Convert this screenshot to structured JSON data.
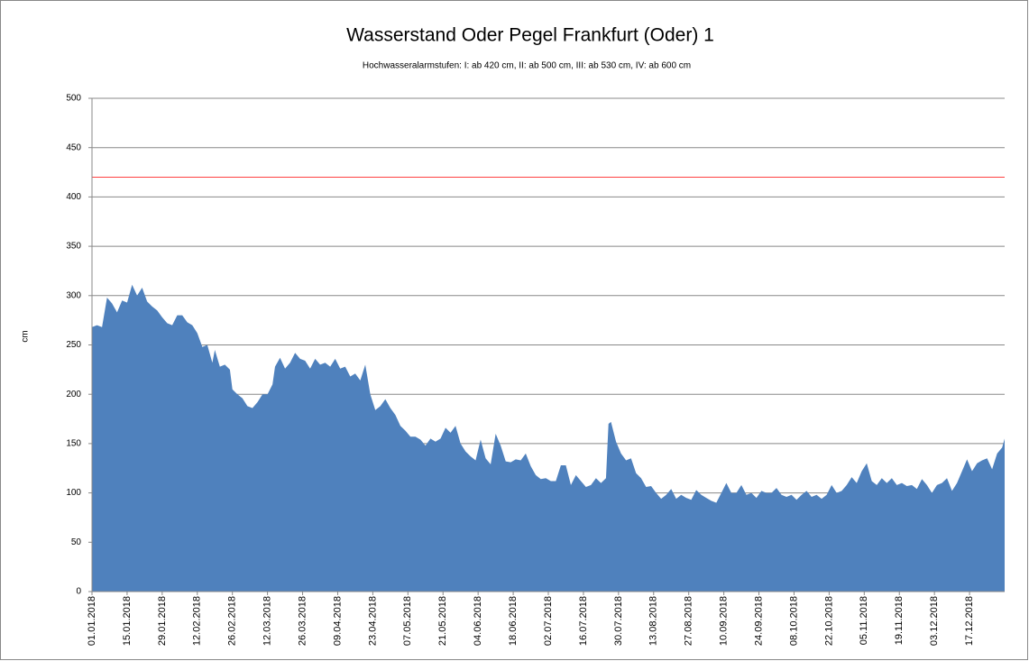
{
  "chart_data": {
    "type": "area",
    "title": "Wasserstand Oder Pegel Frankfurt (Oder) 1",
    "subtitle": "Hochwasseralarmstufen: I: ab 420 cm, II: ab 500 cm, III: ab 530 cm,  IV: ab 600 cm",
    "y_label": "cm",
    "xlim": [
      "01.01.2018",
      "31.12.2018"
    ],
    "ylim": [
      0,
      500
    ],
    "yticks": [
      0,
      50,
      100,
      150,
      200,
      250,
      300,
      350,
      400,
      450,
      500
    ],
    "xticks": [
      "01.01.2018",
      "15.01.2018",
      "29.01.2018",
      "12.02.2018",
      "26.02.2018",
      "12.03.2018",
      "26.03.2018",
      "09.04.2018",
      "23.04.2018",
      "07.05.2018",
      "21.05.2018",
      "04.06.2018",
      "18.06.2018",
      "02.07.2018",
      "16.07.2018",
      "30.07.2018",
      "13.08.2018",
      "27.08.2018",
      "10.09.2018",
      "24.09.2018",
      "08.10.2018",
      "22.10.2018",
      "05.11.2018",
      "19.11.2018",
      "03.12.2018",
      "17.12.2018"
    ],
    "grid": true,
    "alarm_line": {
      "value": 420,
      "color": "#ff0000"
    },
    "x": [
      "01.01.2018",
      "03.01.2018",
      "05.01.2018",
      "07.01.2018",
      "09.01.2018",
      "11.01.2018",
      "13.01.2018",
      "15.01.2018",
      "17.01.2018",
      "19.01.2018",
      "21.01.2018",
      "23.01.2018",
      "25.01.2018",
      "27.01.2018",
      "29.01.2018",
      "31.01.2018",
      "02.02.2018",
      "04.02.2018",
      "06.02.2018",
      "08.02.2018",
      "10.02.2018",
      "12.02.2018",
      "14.02.2018",
      "16.02.2018",
      "18.02.2018",
      "19.02.2018",
      "21.02.2018",
      "23.02.2018",
      "25.02.2018",
      "26.02.2018",
      "28.02.2018",
      "02.03.2018",
      "04.03.2018",
      "06.03.2018",
      "08.03.2018",
      "10.03.2018",
      "12.03.2018",
      "14.03.2018",
      "15.03.2018",
      "17.03.2018",
      "19.03.2018",
      "21.03.2018",
      "23.03.2018",
      "25.03.2018",
      "27.03.2018",
      "29.03.2018",
      "31.03.2018",
      "02.04.2018",
      "04.04.2018",
      "06.04.2018",
      "08.04.2018",
      "10.04.2018",
      "12.04.2018",
      "14.04.2018",
      "16.04.2018",
      "18.04.2018",
      "20.04.2018",
      "22.04.2018",
      "24.04.2018",
      "26.04.2018",
      "28.04.2018",
      "30.04.2018",
      "02.05.2018",
      "04.05.2018",
      "06.05.2018",
      "08.05.2018",
      "10.05.2018",
      "12.05.2018",
      "14.05.2018",
      "16.05.2018",
      "18.05.2018",
      "20.05.2018",
      "22.05.2018",
      "24.05.2018",
      "26.05.2018",
      "28.05.2018",
      "30.05.2018",
      "01.06.2018",
      "03.06.2018",
      "05.06.2018",
      "07.06.2018",
      "09.06.2018",
      "11.06.2018",
      "13.06.2018",
      "15.06.2018",
      "17.06.2018",
      "19.06.2018",
      "21.06.2018",
      "23.06.2018",
      "25.06.2018",
      "27.06.2018",
      "29.06.2018",
      "01.07.2018",
      "03.07.2018",
      "05.07.2018",
      "07.07.2018",
      "09.07.2018",
      "11.07.2018",
      "13.07.2018",
      "15.07.2018",
      "17.07.2018",
      "19.07.2018",
      "21.07.2018",
      "23.07.2018",
      "25.07.2018",
      "26.07.2018",
      "27.07.2018",
      "29.07.2018",
      "31.07.2018",
      "02.08.2018",
      "04.08.2018",
      "06.08.2018",
      "08.08.2018",
      "10.08.2018",
      "12.08.2018",
      "14.08.2018",
      "16.08.2018",
      "18.08.2018",
      "20.08.2018",
      "22.08.2018",
      "24.08.2018",
      "26.08.2018",
      "28.08.2018",
      "30.08.2018",
      "01.09.2018",
      "03.09.2018",
      "05.09.2018",
      "07.09.2018",
      "09.09.2018",
      "11.09.2018",
      "13.09.2018",
      "15.09.2018",
      "17.09.2018",
      "19.09.2018",
      "21.09.2018",
      "23.09.2018",
      "25.09.2018",
      "27.09.2018",
      "29.09.2018",
      "01.10.2018",
      "03.10.2018",
      "05.10.2018",
      "07.10.2018",
      "09.10.2018",
      "11.10.2018",
      "13.10.2018",
      "15.10.2018",
      "17.10.2018",
      "19.10.2018",
      "21.10.2018",
      "23.10.2018",
      "25.10.2018",
      "27.10.2018",
      "29.10.2018",
      "31.10.2018",
      "02.11.2018",
      "04.11.2018",
      "06.11.2018",
      "08.11.2018",
      "10.11.2018",
      "12.11.2018",
      "14.11.2018",
      "16.11.2018",
      "18.11.2018",
      "20.11.2018",
      "22.11.2018",
      "24.11.2018",
      "26.11.2018",
      "28.11.2018",
      "30.11.2018",
      "02.12.2018",
      "04.12.2018",
      "06.12.2018",
      "08.12.2018",
      "10.12.2018",
      "12.12.2018",
      "14.12.2018",
      "16.12.2018",
      "18.12.2018",
      "20.12.2018",
      "22.12.2018",
      "24.12.2018",
      "26.12.2018",
      "28.12.2018",
      "30.12.2018",
      "31.12.2018"
    ],
    "series": [
      {
        "color": "#4f81bd",
        "values": [
          268,
          270,
          268,
          298,
          292,
          283,
          295,
          293,
          311,
          300,
          308,
          294,
          289,
          285,
          278,
          272,
          270,
          280,
          280,
          273,
          270,
          262,
          248,
          250,
          232,
          245,
          228,
          230,
          225,
          205,
          200,
          196,
          188,
          186,
          192,
          200,
          200,
          210,
          228,
          237,
          226,
          232,
          242,
          236,
          234,
          226,
          236,
          230,
          232,
          228,
          236,
          226,
          228,
          218,
          221,
          214,
          230,
          200,
          184,
          188,
          195,
          186,
          179,
          168,
          163,
          157,
          157,
          154,
          148,
          155,
          152,
          155,
          166,
          161,
          168,
          150,
          142,
          137,
          133,
          154,
          135,
          129,
          160,
          148,
          132,
          131,
          134,
          133,
          140,
          127,
          118,
          114,
          115,
          112,
          112,
          128,
          128,
          108,
          118,
          112,
          106,
          108,
          115,
          110,
          115,
          170,
          172,
          152,
          140,
          133,
          135,
          120,
          115,
          106,
          107,
          100,
          94,
          98,
          104,
          94,
          98,
          95,
          93,
          103,
          98,
          95,
          92,
          90,
          100,
          110,
          100,
          100,
          108,
          98,
          100,
          95,
          102,
          100,
          100,
          105,
          98,
          96,
          98,
          93,
          98,
          102,
          96,
          98,
          94,
          98,
          108,
          100,
          102,
          108,
          116,
          110,
          122,
          130,
          112,
          108,
          115,
          110,
          115,
          108,
          110,
          107,
          108,
          104,
          114,
          108,
          100,
          108,
          110,
          115,
          102,
          110,
          122,
          134,
          122,
          130,
          133,
          135,
          124,
          140,
          146,
          155
        ]
      }
    ]
  }
}
